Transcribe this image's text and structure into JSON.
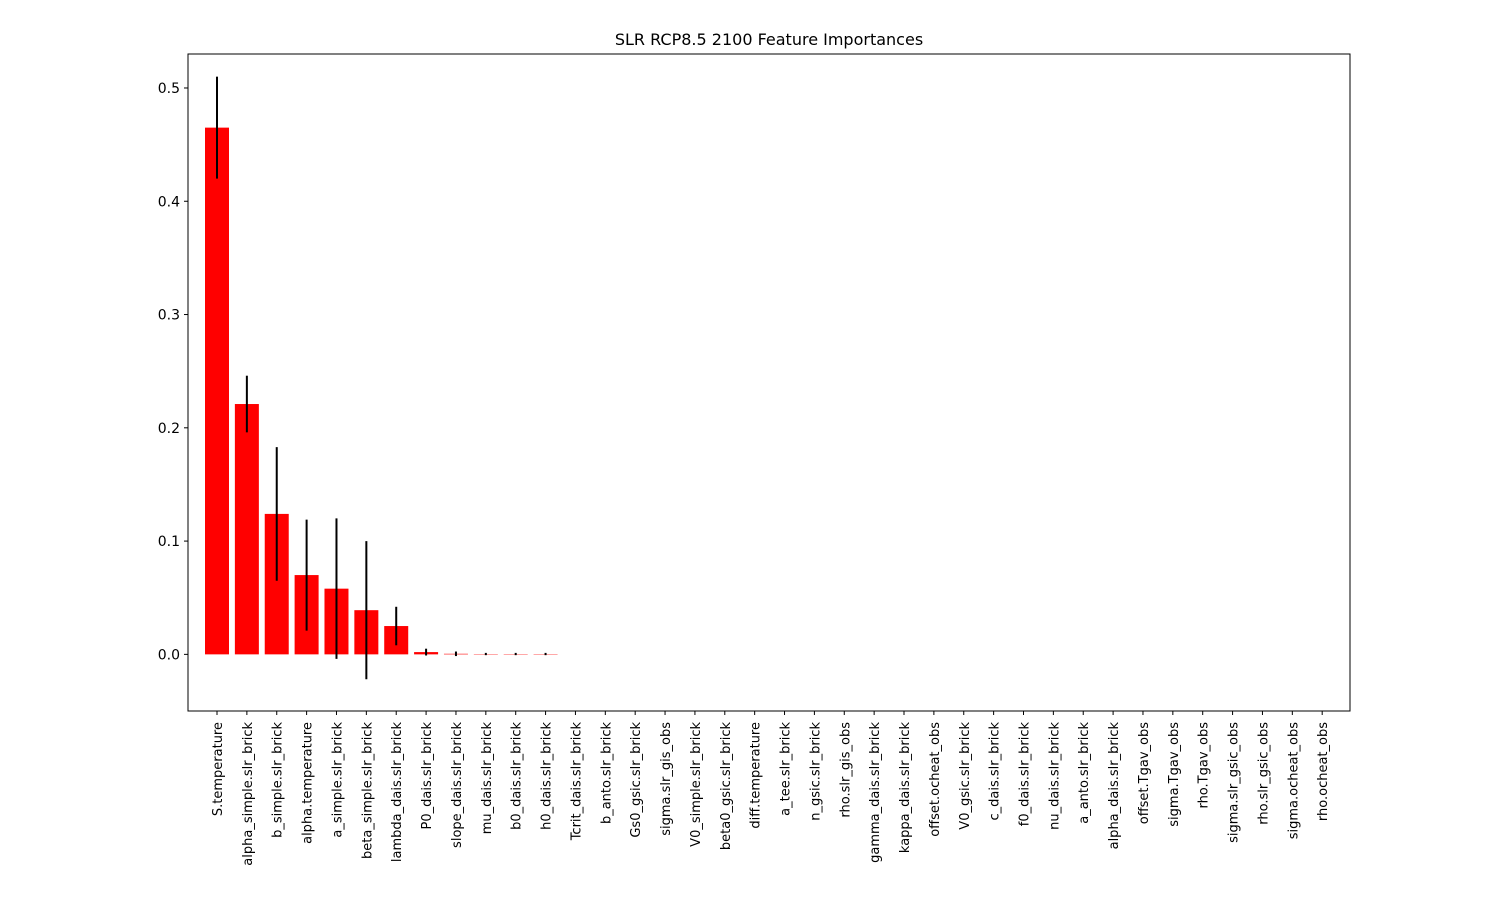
{
  "chart_data": {
    "type": "bar",
    "title": "SLR RCP8.5 2100 Feature Importances",
    "xlabel": "",
    "ylabel": "",
    "ylim": [
      -0.05,
      0.53
    ],
    "yticks": [
      0.0,
      0.1,
      0.2,
      0.3,
      0.4,
      0.5
    ],
    "ytick_labels": [
      "0.0",
      "0.1",
      "0.2",
      "0.3",
      "0.4",
      "0.5"
    ],
    "bar_color": "#ff0000",
    "error_color": "#000000",
    "grid": false,
    "categories": [
      "S.temperature",
      "alpha_simple.slr_brick",
      "b_simple.slr_brick",
      "alpha.temperature",
      "a_simple.slr_brick",
      "beta_simple.slr_brick",
      "lambda_dais.slr_brick",
      "P0_dais.slr_brick",
      "slope_dais.slr_brick",
      "mu_dais.slr_brick",
      "b0_dais.slr_brick",
      "h0_dais.slr_brick",
      "Tcrit_dais.slr_brick",
      "b_anto.slr_brick",
      "Gs0_gsic.slr_brick",
      "sigma.slr_gis_obs",
      "V0_simple.slr_brick",
      "beta0_gsic.slr_brick",
      "diff.temperature",
      "a_tee.slr_brick",
      "n_gsic.slr_brick",
      "rho.slr_gis_obs",
      "gamma_dais.slr_brick",
      "kappa_dais.slr_brick",
      "offset.ocheat_obs",
      "V0_gsic.slr_brick",
      "c_dais.slr_brick",
      "f0_dais.slr_brick",
      "nu_dais.slr_brick",
      "a_anto.slr_brick",
      "alpha_dais.slr_brick",
      "offset.Tgav_obs",
      "sigma.Tgav_obs",
      "rho.Tgav_obs",
      "sigma.slr_gsic_obs",
      "rho.slr_gsic_obs",
      "sigma.ocheat_obs",
      "rho.ocheat_obs"
    ],
    "values": [
      0.465,
      0.221,
      0.124,
      0.07,
      0.058,
      0.039,
      0.025,
      0.002,
      0.0005,
      0.0003,
      0.0003,
      0.0003,
      0,
      0,
      0,
      0,
      0,
      0,
      0,
      0,
      0,
      0,
      0,
      0,
      0,
      0,
      0,
      0,
      0,
      0,
      0,
      0,
      0,
      0,
      0,
      0,
      0,
      0
    ],
    "errors": [
      0.045,
      0.025,
      0.059,
      0.049,
      0.062,
      0.061,
      0.017,
      0.003,
      0.002,
      0.001,
      0.001,
      0.001,
      0,
      0,
      0,
      0,
      0,
      0,
      0,
      0,
      0,
      0,
      0,
      0,
      0,
      0,
      0,
      0,
      0,
      0,
      0,
      0,
      0,
      0,
      0,
      0,
      0,
      0
    ]
  }
}
